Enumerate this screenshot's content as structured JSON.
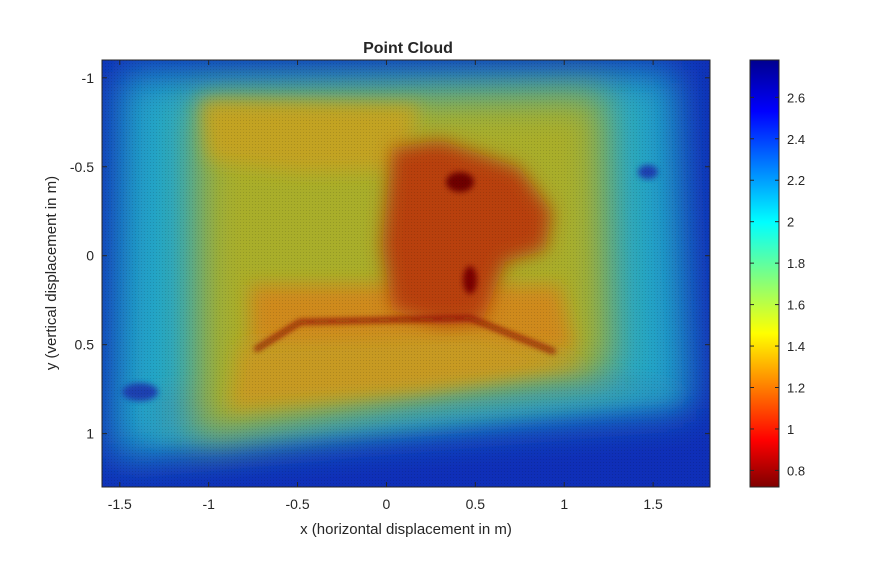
{
  "chart_data": {
    "type": "heatmap",
    "title": "Point Cloud",
    "xlabel": "x (horizontal displacement in m)",
    "ylabel": "y (vertical displacement in m)",
    "xlim": [
      -1.6,
      1.82
    ],
    "ylim": [
      -1.1,
      1.3
    ],
    "y_direction": "reversed",
    "x_ticks": [
      -1.5,
      -1,
      -0.5,
      0,
      0.5,
      1,
      1.5
    ],
    "x_tick_labels": [
      "-1.5",
      "-1",
      "-0.5",
      "0",
      "0.5",
      "1",
      "1.5"
    ],
    "y_ticks": [
      -1,
      -0.5,
      0,
      0.5,
      1
    ],
    "y_tick_labels": [
      "-1",
      "-0.5",
      "0",
      "0.5",
      "1"
    ],
    "colormap": "jet",
    "clim": [
      0.72,
      2.78
    ],
    "colorbar_ticks": [
      0.8,
      1,
      1.2,
      1.4,
      1.6,
      1.8,
      2,
      2.2,
      2.4,
      2.6
    ],
    "colorbar_tick_labels": [
      "0.8",
      "1",
      "1.2",
      "1.4",
      "1.6",
      "1.8",
      "2",
      "2.2",
      "2.4",
      "2.6"
    ],
    "colorbar_location": "right",
    "grid": false,
    "regions": [
      {
        "region": "outer border",
        "approx_value": 2.7
      },
      {
        "region": "mid frame",
        "approx_value": 1.9
      },
      {
        "region": "central area",
        "approx_value": 1.35
      },
      {
        "region": "central object",
        "approx_value": 1.0
      },
      {
        "region": "dark spots near center",
        "approx_value": 0.8
      }
    ]
  }
}
